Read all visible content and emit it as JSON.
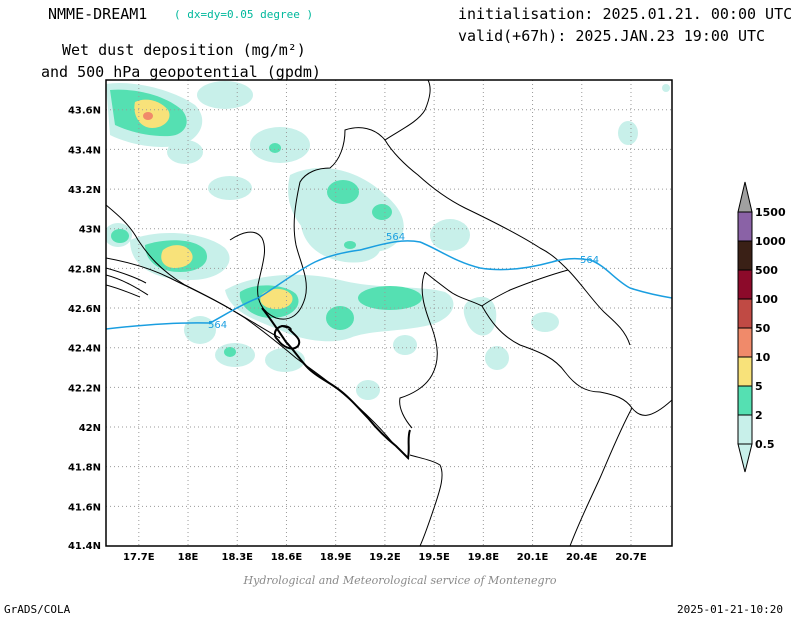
{
  "header": {
    "model": "NMME-DREAM1",
    "resolution": "( dx=dy=0.05 degree )",
    "init": "initialisation: 2025.01.21. 00:00 UTC",
    "valid": "valid(+67h): 2025.JAN.23 19:00 UTC",
    "title_line1": "Wet dust deposition (mg/m²)",
    "title_line2": "and 500 hPa geopotential (gpdm)"
  },
  "map": {
    "lon_range": [
      17.5,
      20.95
    ],
    "lat_range": [
      41.4,
      43.75
    ],
    "lon_ticks": [
      "17.7E",
      "18E",
      "18.3E",
      "18.6E",
      "18.9E",
      "19.2E",
      "19.5E",
      "19.8E",
      "20.1E",
      "20.4E",
      "20.7E"
    ],
    "lat_ticks": [
      "43.6N",
      "43.4N",
      "43.2N",
      "43N",
      "42.8N",
      "42.6N",
      "42.4N",
      "42.2N",
      "42N",
      "41.8N",
      "41.6N",
      "41.4N"
    ],
    "contour_label": "564",
    "contour_color": "#1a9ee0",
    "gridlines": "dotted"
  },
  "colorbar": {
    "labels": [
      "0.5",
      "2",
      "5",
      "10",
      "50",
      "100",
      "500",
      "1000",
      "1500"
    ],
    "colors": [
      "#c8f0ea",
      "#55e0b2",
      "#f8e27a",
      "#f08a6a",
      "#c04a44",
      "#8c0a2a",
      "#3a2016",
      "#8a62a6",
      "#a0a0a0"
    ]
  },
  "footer": {
    "credit": "Hydrological and Meteorological service of Montenegro",
    "left": "GrADS/COLA",
    "timestamp": "2025-01-21-10:20"
  }
}
